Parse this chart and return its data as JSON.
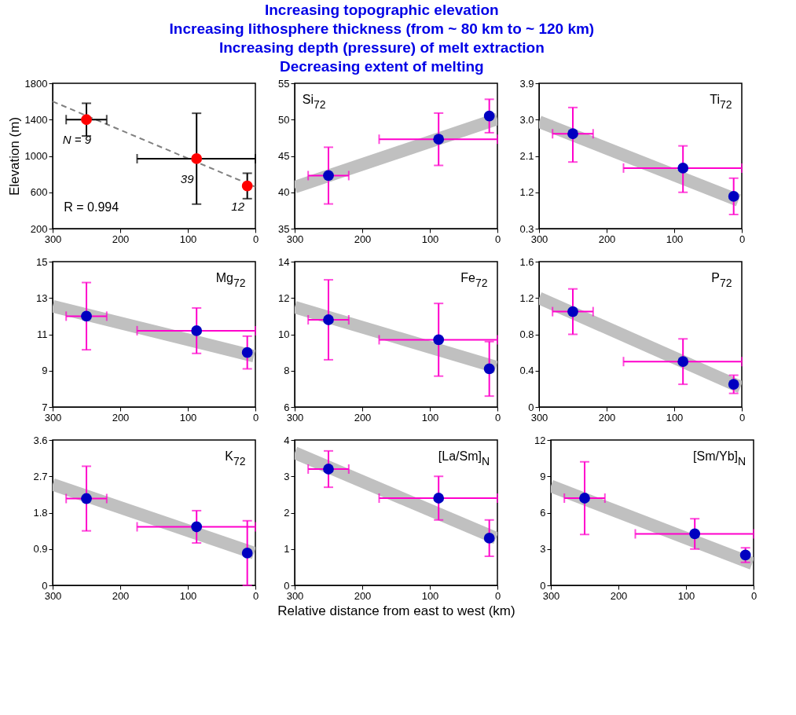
{
  "chart_data": [
    {
      "type": "scatter",
      "title": "Increasing topographic elevation\nIncreasing lithosphere thickness (from ~ 80 km to ~ 120 km)\nIncreasing depth (pressure) of melt extraction\nDecreasing extent of melting",
      "ylabel": "Elevation (m)",
      "xlim": [
        300,
        0
      ],
      "xticks": [
        300,
        200,
        100,
        0
      ],
      "ylim": [
        200,
        1800
      ],
      "yticks": [
        200,
        600,
        1000,
        1400,
        1800
      ],
      "annotations": [
        {
          "text": "N = 9",
          "x": 250,
          "y": 1400
        },
        {
          "text": "39",
          "x": 87,
          "y": 970
        },
        {
          "text": "12",
          "x": 12,
          "y": 670
        },
        "R = 0.994"
      ],
      "series": [
        {
          "type": "line",
          "color": "#808080",
          "line_style": "dashed",
          "x": [
            0,
            300
          ],
          "values": [
            660,
            1600
          ]
        },
        {
          "color": "#ff0000",
          "marker": "circle",
          "x": [
            250,
            87,
            12
          ],
          "values": [
            1400,
            970,
            670
          ],
          "errors": [
            [
              1220,
              1580
            ],
            [
              470,
              1470
            ],
            [
              530,
              810
            ]
          ],
          "xerrors": [
            30,
            [
              0,
              175
            ],
            null
          ]
        }
      ]
    },
    {
      "type": "scatter",
      "xlim": [
        300,
        0
      ],
      "xticks": [
        300,
        200,
        100,
        0
      ],
      "ylim": [
        35,
        55
      ],
      "yticks": [
        35,
        40,
        45,
        50,
        55
      ],
      "annotations": [
        "Si$_{72}$"
      ],
      "series": [
        {
          "type": "line",
          "color": "#c0c0c0",
          "line_style": "solid",
          "x": [
            0,
            300
          ],
          "values": [
            50.1,
            40.7
          ]
        },
        {
          "color": "#0000c0",
          "marker": "circle",
          "x": [
            250,
            87,
            12
          ],
          "values": [
            42.3,
            47.3,
            50.5
          ],
          "errors": [
            [
              38.4,
              46.2
            ],
            [
              43.7,
              50.9
            ],
            [
              48.2,
              52.8
            ]
          ],
          "xerrors": [
            30,
            [
              0,
              175
            ],
            null
          ]
        }
      ]
    },
    {
      "type": "scatter",
      "xlim": [
        300,
        0
      ],
      "xticks": [
        300,
        200,
        100,
        0
      ],
      "ylim": [
        0.3,
        3.9
      ],
      "yticks": [
        {
          "value": 0.3,
          "label": "0.3"
        },
        {
          "value": 1.2,
          "label": "1.2"
        },
        {
          "value": 2.1,
          "label": "2.1"
        },
        {
          "value": 3.0,
          "label": "3.0"
        },
        {
          "value": 3.9,
          "label": "3.9"
        }
      ],
      "annotations": [
        "Ti$_{72}$"
      ],
      "series": [
        {
          "type": "line",
          "color": "#c0c0c0",
          "line_style": "solid",
          "x": [
            5,
            300
          ],
          "values": [
            1.0,
            2.95
          ]
        },
        {
          "color": "#0000c0",
          "marker": "circle",
          "x": [
            250,
            87,
            12
          ],
          "values": [
            2.65,
            1.8,
            1.1
          ],
          "errors": [
            [
              1.95,
              3.3
            ],
            [
              1.2,
              2.35
            ],
            [
              0.65,
              1.55
            ]
          ],
          "xerrors": [
            30,
            [
              0,
              175
            ],
            null
          ]
        }
      ]
    },
    {
      "type": "scatter",
      "xlim": [
        300,
        0
      ],
      "xticks": [
        300,
        200,
        100,
        0
      ],
      "ylim": [
        7,
        15
      ],
      "yticks": [
        7,
        9,
        11,
        13,
        15
      ],
      "annotations": [
        "Mg$_{72}$"
      ],
      "series": [
        {
          "type": "line",
          "color": "#c0c0c0",
          "line_style": "solid",
          "x": [
            2,
            300
          ],
          "values": [
            9.8,
            12.55
          ]
        },
        {
          "color": "#0000c0",
          "marker": "circle",
          "x": [
            250,
            87,
            12
          ],
          "values": [
            12.0,
            11.2,
            10.0
          ],
          "errors": [
            [
              10.15,
              13.85
            ],
            [
              9.95,
              12.45
            ],
            [
              9.1,
              10.9
            ]
          ],
          "xerrors": [
            30,
            [
              0,
              175
            ],
            null
          ]
        }
      ]
    },
    {
      "type": "scatter",
      "xlim": [
        300,
        0
      ],
      "xticks": [
        300,
        200,
        100,
        0
      ],
      "ylim": [
        6,
        14
      ],
      "yticks": [
        6,
        8,
        10,
        12,
        14
      ],
      "annotations": [
        "Fe$_{72}$"
      ],
      "series": [
        {
          "type": "line",
          "color": "#c0c0c0",
          "line_style": "solid",
          "x": [
            2,
            300
          ],
          "values": [
            8.2,
            11.5
          ]
        },
        {
          "color": "#0000c0",
          "marker": "circle",
          "x": [
            250,
            87,
            12
          ],
          "values": [
            10.8,
            9.7,
            8.1
          ],
          "errors": [
            [
              8.6,
              13.0
            ],
            [
              7.7,
              11.7
            ],
            [
              6.6,
              9.6
            ]
          ],
          "xerrors": [
            30,
            [
              0,
              175
            ],
            null
          ]
        }
      ]
    },
    {
      "type": "scatter",
      "xlim": [
        300,
        0
      ],
      "xticks": [
        300,
        200,
        100,
        0
      ],
      "ylim": [
        0,
        1.6
      ],
      "yticks": [
        0,
        0.4,
        0.8,
        1.2,
        1.6
      ],
      "annotations": [
        "P$_{72}$"
      ],
      "series": [
        {
          "type": "line",
          "color": "#c0c0c0",
          "line_style": "solid",
          "x": [
            2,
            300
          ],
          "values": [
            0.22,
            1.2
          ]
        },
        {
          "color": "#0000c0",
          "marker": "circle",
          "x": [
            250,
            87,
            12
          ],
          "values": [
            1.05,
            0.5,
            0.25
          ],
          "errors": [
            [
              0.8,
              1.3
            ],
            [
              0.25,
              0.75
            ],
            [
              0.15,
              0.35
            ]
          ],
          "xerrors": [
            30,
            [
              0,
              175
            ],
            null
          ]
        }
      ]
    },
    {
      "type": "scatter",
      "xlim": [
        300,
        0
      ],
      "xticks": [
        300,
        200,
        100,
        0
      ],
      "ylim": [
        0,
        3.6
      ],
      "yticks": [
        0,
        0.9,
        1.8,
        2.7,
        3.6
      ],
      "annotations": [
        "K$_{72}$"
      ],
      "series": [
        {
          "type": "line",
          "color": "#c0c0c0",
          "line_style": "solid",
          "x": [
            2,
            300
          ],
          "values": [
            0.8,
            2.5
          ]
        },
        {
          "color": "#0000c0",
          "marker": "circle",
          "x": [
            250,
            87,
            12
          ],
          "values": [
            2.15,
            1.45,
            0.8
          ],
          "errors": [
            [
              1.35,
              2.95
            ],
            [
              1.05,
              1.85
            ],
            [
              0,
              1.6
            ]
          ],
          "xerrors": [
            30,
            [
              0,
              175
            ],
            null
          ]
        }
      ]
    },
    {
      "type": "scatter",
      "xlabel": "Relative distance from east to west (km)",
      "xlim": [
        300,
        0
      ],
      "xticks": [
        300,
        200,
        100,
        0
      ],
      "ylim": [
        0,
        4
      ],
      "yticks": [
        0,
        1,
        2,
        3,
        4
      ],
      "annotations": [
        "[La/Sm]$_{N}$"
      ],
      "series": [
        {
          "type": "line",
          "color": "#c0c0c0",
          "line_style": "solid",
          "x": [
            2,
            300
          ],
          "values": [
            1.3,
            3.65
          ]
        },
        {
          "color": "#0000c0",
          "marker": "circle",
          "x": [
            250,
            87,
            12
          ],
          "values": [
            3.2,
            2.4,
            1.3
          ],
          "errors": [
            [
              2.7,
              3.7
            ],
            [
              1.8,
              3.0
            ],
            [
              0.8,
              1.8
            ]
          ],
          "xerrors": [
            30,
            [
              0,
              175
            ],
            null
          ]
        }
      ]
    },
    {
      "type": "scatter",
      "xlim": [
        300,
        0
      ],
      "xticks": [
        300,
        200,
        100,
        0
      ],
      "ylim": [
        0,
        12
      ],
      "yticks": [
        0,
        3,
        6,
        9,
        12
      ],
      "annotations": [
        "[Sm/Yb]$_{N}$"
      ],
      "series": [
        {
          "type": "line",
          "color": "#c0c0c0",
          "line_style": "solid",
          "x": [
            2,
            300
          ],
          "values": [
            1.8,
            8.2
          ]
        },
        {
          "color": "#0000c0",
          "marker": "circle",
          "x": [
            250,
            87,
            12
          ],
          "values": [
            7.2,
            4.25,
            2.5
          ],
          "errors": [
            [
              4.2,
              10.2
            ],
            [
              3.0,
              5.5
            ],
            [
              1.9,
              3.1
            ]
          ],
          "xerrors": [
            30,
            [
              0,
              175
            ],
            null
          ]
        }
      ]
    }
  ]
}
